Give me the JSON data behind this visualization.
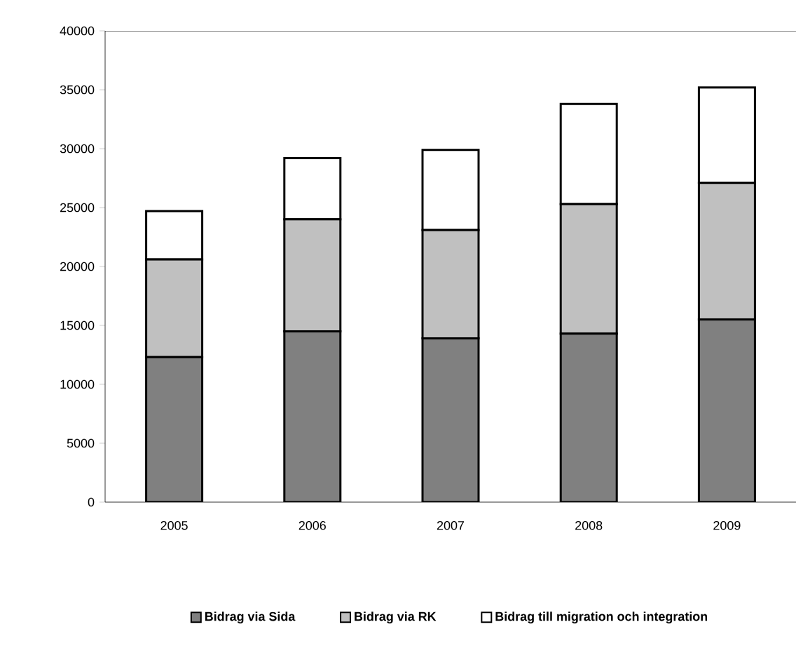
{
  "chart_data": {
    "type": "bar",
    "stacked": true,
    "categories": [
      "2005",
      "2006",
      "2007",
      "2008",
      "2009"
    ],
    "series": [
      {
        "name": "Bidrag via Sida",
        "color": "#808080",
        "values": [
          12300,
          14500,
          13900,
          14300,
          15500
        ]
      },
      {
        "name": "Bidrag via RK",
        "color": "#c0c0c0",
        "values": [
          8300,
          9500,
          9200,
          11000,
          11600
        ]
      },
      {
        "name": "Bidrag till migration och integration",
        "color": "#ffffff",
        "values": [
          4100,
          5200,
          6800,
          8500,
          8100
        ]
      }
    ],
    "ylim": [
      0,
      40000
    ],
    "yticks": [
      0,
      5000,
      10000,
      15000,
      20000,
      25000,
      30000,
      35000,
      40000
    ],
    "grid": false,
    "legend": "bottom"
  }
}
